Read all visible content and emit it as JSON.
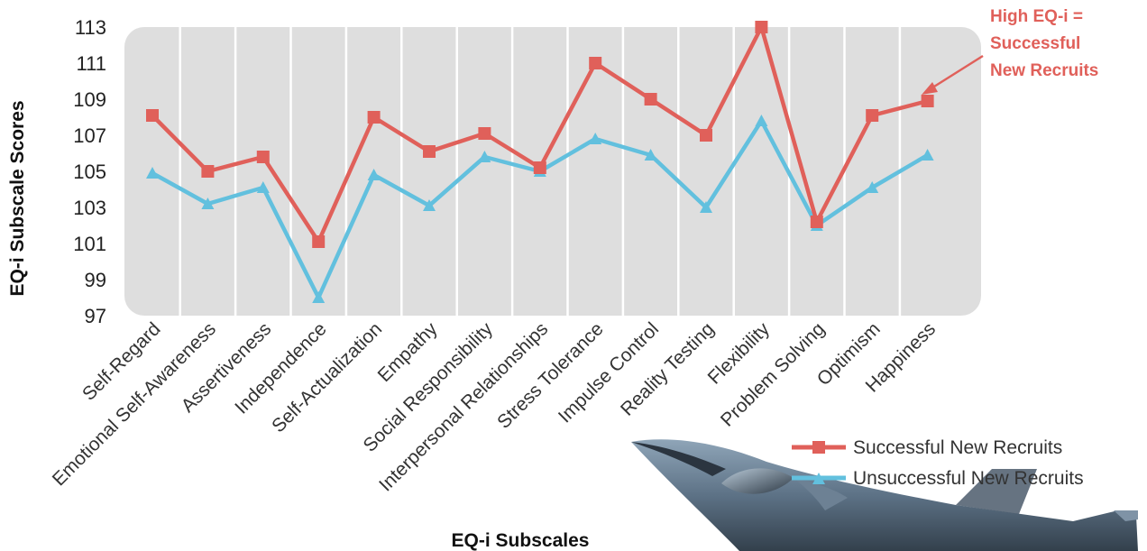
{
  "chart_data": {
    "type": "line",
    "xlabel": "EQ-i Subscales",
    "ylabel": "EQ-i Subscale Scores",
    "ylim": [
      97,
      113
    ],
    "yticks": [
      97,
      99,
      101,
      103,
      105,
      107,
      109,
      111,
      113
    ],
    "grid": "vertical",
    "legend_position": "bottom-right",
    "categories": [
      "Self-Regard",
      "Emotional Self-Awareness",
      "Assertiveness",
      "Independence",
      "Self-Actualization",
      "Empathy",
      "Social Responsibility",
      "Interpersonal Relationships",
      "Stress Tolerance",
      "Impulse Control",
      "Reality Testing",
      "Flexibility",
      "Problem Solving",
      "Optimism",
      "Happiness"
    ],
    "series": [
      {
        "name": "Successful New Recruits",
        "color": "#e0605a",
        "marker": "square",
        "values": [
          108.1,
          105.0,
          105.8,
          101.1,
          108.0,
          106.1,
          107.1,
          105.2,
          111.0,
          109.0,
          107.0,
          113.0,
          102.2,
          108.1,
          108.9
        ]
      },
      {
        "name": "Unsuccessful New Recruits",
        "color": "#62c0de",
        "marker": "triangle",
        "values": [
          104.9,
          103.2,
          104.1,
          98.0,
          104.8,
          103.1,
          105.8,
          105.0,
          106.8,
          105.9,
          103.0,
          107.8,
          102.0,
          104.1,
          105.9
        ]
      }
    ],
    "annotation": {
      "lines": [
        "High EQ-i =",
        "Successful",
        "New Recruits"
      ],
      "color": "#e0605a"
    },
    "background_color": "#dedede"
  },
  "decor": {
    "aircraft_image": "fighter-jet-photo"
  }
}
